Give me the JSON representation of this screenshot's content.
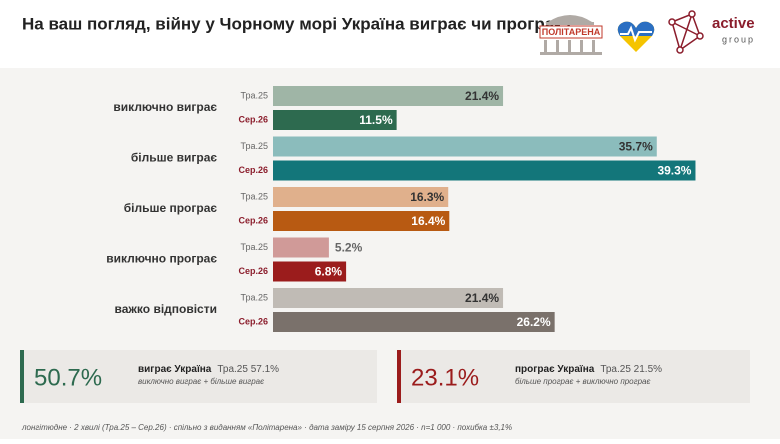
{
  "chart_data": {
    "type": "grouped-hbar",
    "title": "На ваш погляд, війну у Чорному морі Україна виграє чи програє?",
    "categories": [
      "виключно виграє",
      "більше виграє",
      "більше програє",
      "виключно програє",
      "важко відповісти"
    ],
    "series": [
      {
        "name": "Тра.25",
        "colors": [
          "#9fb5a6",
          "#8bbcbc",
          "#e0b08c",
          "#d09a98",
          "#c0bbb5"
        ],
        "values": [
          21.4,
          35.7,
          16.3,
          5.2,
          21.4
        ],
        "value_labels": [
          "21.4%",
          "35.7%",
          "16.3%",
          "5.2%",
          "21.4%"
        ]
      },
      {
        "name": "Сер.26",
        "colors": [
          "#2d6a4f",
          "#13767a",
          "#b85a12",
          "#9b1c1c",
          "#7a716b"
        ],
        "values": [
          11.5,
          39.3,
          16.4,
          6.8,
          26.2
        ],
        "value_labels": [
          "11.5%",
          "39.3%",
          "16.4%",
          "6.8%",
          "26.2%"
        ]
      }
    ]
  },
  "summary": [
    {
      "value": "50.7%",
      "label": "виграє Україна",
      "previous": "Тра.25 57.1%",
      "note": "виключно виграє + більше виграє",
      "color": "#2d6a4f"
    },
    {
      "value": "23.1%",
      "label": "програє Україна",
      "previous": "Тра.25 21.5%",
      "note": "більше програє + виключно програє",
      "color": "#9b1c1c"
    }
  ],
  "logos": {
    "politarena": "ПОЛІТАРЕНА",
    "active": "active",
    "group": "group"
  },
  "footer": "лонгітюдне · 2 хвилі (Тра.25 – Сер.26) · спільно з виданням «Політарена» · дата заміру 15 серпня 2026 · n=1 000 · похибка ±3,1%"
}
